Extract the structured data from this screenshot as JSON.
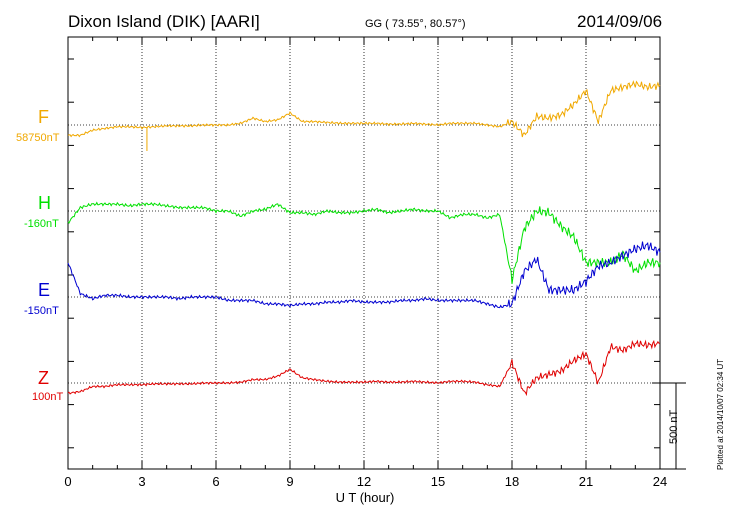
{
  "header": {
    "station": "Dixon Island (DIK)  [AARI]",
    "coords": "GG ( 73.55°,  80.57°)",
    "date": "2014/09/06"
  },
  "colors": {
    "F": "#f0a800",
    "H": "#00e000",
    "E": "#0000d0",
    "Z": "#e00000"
  },
  "scale_label": "500 nT",
  "footer": "Plotted at 2014/10/07 02:34 UT",
  "chart_data": {
    "type": "line",
    "title": "Dixon Island (DIK)  [AARI]",
    "xlabel": "U T (hour)",
    "ylabel": "",
    "xlim": [
      0,
      24
    ],
    "xticks": [
      "0",
      "3",
      "6",
      "9",
      "12",
      "15",
      "18",
      "21",
      "24"
    ],
    "x": [
      0,
      0.5,
      1,
      1.5,
      2,
      2.5,
      3,
      3.5,
      4,
      4.5,
      5,
      5.5,
      6,
      6.5,
      7,
      7.5,
      8,
      8.5,
      9,
      9.5,
      10,
      10.5,
      11,
      11.5,
      12,
      12.5,
      13,
      13.5,
      14,
      14.5,
      15,
      15.5,
      16,
      16.5,
      17,
      17.5,
      18,
      18.5,
      19,
      19.5,
      20,
      20.5,
      21,
      21.5,
      22,
      22.5,
      23,
      23.5,
      24
    ],
    "series": [
      {
        "name": "F",
        "baseline": "58750nT",
        "color": "#f0a800",
        "values": [
          -60,
          -60,
          -30,
          -20,
          -10,
          -10,
          -15,
          -10,
          -5,
          -5,
          -5,
          0,
          0,
          0,
          10,
          40,
          20,
          30,
          70,
          20,
          20,
          15,
          10,
          10,
          10,
          10,
          5,
          5,
          10,
          5,
          0,
          10,
          10,
          10,
          0,
          -10,
          20,
          -60,
          50,
          40,
          60,
          120,
          200,
          20,
          200,
          220,
          240,
          220,
          230
        ]
      },
      {
        "name": "H",
        "baseline": "-160nT",
        "color": "#00e000",
        "values": [
          -70,
          20,
          40,
          40,
          40,
          30,
          40,
          40,
          30,
          20,
          20,
          20,
          0,
          0,
          -30,
          0,
          10,
          40,
          -10,
          -10,
          -20,
          0,
          -10,
          -10,
          0,
          10,
          -10,
          0,
          10,
          0,
          0,
          -40,
          -20,
          -20,
          -40,
          -20,
          -400,
          -100,
          0,
          -10,
          -90,
          -150,
          -300,
          -300,
          -300,
          -250,
          -350,
          -300,
          -300
        ]
      },
      {
        "name": "E",
        "baseline": "-150nT",
        "color": "#0000d0",
        "values": [
          200,
          20,
          -10,
          10,
          10,
          0,
          0,
          0,
          0,
          -10,
          0,
          0,
          0,
          -20,
          -20,
          -20,
          -40,
          -40,
          -50,
          -40,
          -40,
          -30,
          -30,
          -20,
          -30,
          -30,
          -30,
          -20,
          -20,
          -10,
          -20,
          -20,
          -20,
          -20,
          -40,
          -60,
          -40,
          150,
          220,
          40,
          40,
          40,
          90,
          180,
          200,
          240,
          280,
          300,
          260
        ]
      },
      {
        "name": "Z",
        "baseline": "100nT",
        "color": "#e00000",
        "values": [
          -60,
          -50,
          -20,
          -20,
          -10,
          -10,
          -10,
          -5,
          -5,
          -5,
          -5,
          0,
          0,
          0,
          5,
          20,
          20,
          40,
          80,
          30,
          20,
          10,
          5,
          5,
          5,
          10,
          5,
          5,
          10,
          5,
          0,
          10,
          10,
          5,
          -10,
          -20,
          120,
          -60,
          30,
          50,
          70,
          130,
          170,
          0,
          210,
          190,
          230,
          220,
          230
        ]
      }
    ]
  }
}
